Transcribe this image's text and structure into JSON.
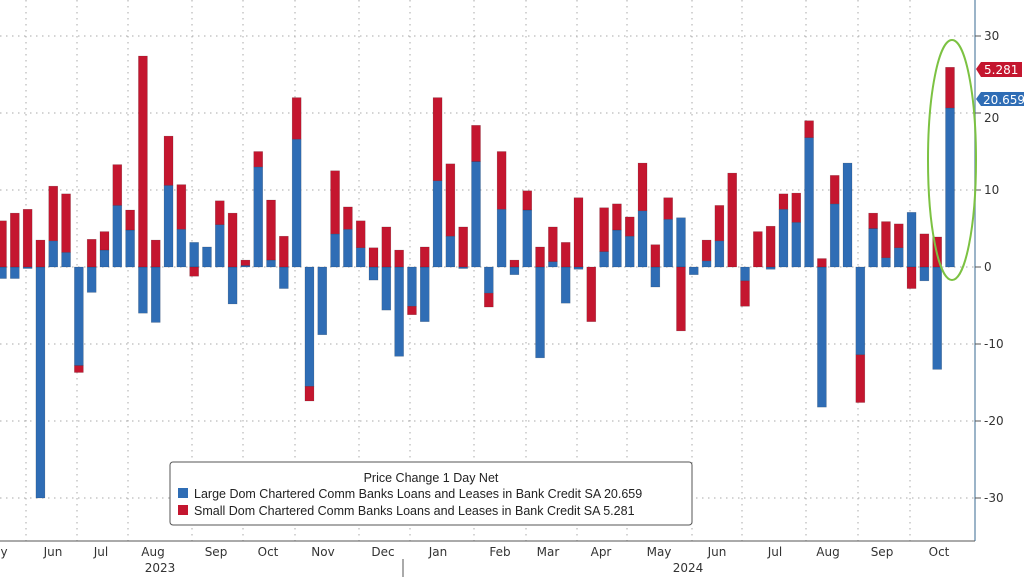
{
  "chart_data": {
    "type": "bar",
    "stacked": true,
    "legend_title": "Price Change 1 Day Net",
    "legend_placement": "bottom-center",
    "ylim": [
      -30,
      30
    ],
    "yticks": [
      30,
      20,
      10,
      0,
      -10,
      -20,
      -30
    ],
    "ytick_labels": [
      "30",
      "20",
      "10",
      "0",
      "-10",
      "-20",
      "-30"
    ],
    "grid": true,
    "months": [
      "y",
      "Jun",
      "Jul",
      "Aug",
      "Sep",
      "Oct",
      "Nov",
      "Dec",
      "Jan",
      "Feb",
      "Mar",
      "Apr",
      "May",
      "Jun",
      "Jul",
      "Aug",
      "Sep",
      "Oct"
    ],
    "years": [
      "2023",
      "2024"
    ],
    "series": [
      {
        "name": "Large Dom Chartered Comm Banks Loans and Leases in Bank Credit SA",
        "last": "20.659",
        "color": "#2f6db5",
        "values": [
          -1.5,
          -1.5,
          -0.2,
          -30,
          3.4,
          1.9,
          -12.8,
          -3.3,
          2.2,
          8,
          4.8,
          -6,
          -7.2,
          10.6,
          4.9,
          3.2,
          2.6,
          5.5,
          -4.8,
          0.2,
          13,
          0.9,
          -2.8,
          16.6,
          -15.5,
          -8.8,
          4.3,
          4.9,
          2.5,
          -1.7,
          -5.6,
          -11.6,
          -5.1,
          -7.1,
          11.2,
          4,
          -0.2,
          13.7,
          -3.4,
          7.5,
          -1,
          7.4,
          -11.8,
          0.7,
          -4.7,
          -0.3,
          0,
          2,
          4.8,
          4,
          7.3,
          -2.6,
          6.2,
          6.4,
          -1,
          0.8,
          3.4,
          0,
          -1.8,
          0,
          -0.3,
          7.5,
          5.8,
          16.8,
          -18.2,
          8.2,
          13.5,
          -11.4,
          5,
          1.2,
          2.5,
          7.1,
          -1.8,
          -13.3,
          20.659
        ]
      },
      {
        "name": "Small Dom Chartered Comm Banks Loans and Leases in Bank Credit SA",
        "last": "5.281",
        "color": "#c4162f",
        "values": [
          6,
          7,
          7.5,
          3.5,
          7.1,
          7.6,
          -0.9,
          3.6,
          2.4,
          5.3,
          2.6,
          27.4,
          3.5,
          6.4,
          5.8,
          -1.2,
          0,
          3.1,
          7,
          0.7,
          2,
          7.8,
          4,
          5.4,
          -1.9,
          0,
          8.2,
          2.9,
          3.5,
          2.5,
          5.2,
          2.2,
          -1.1,
          2.6,
          10.8,
          9.4,
          5.2,
          4.7,
          -1.8,
          7.5,
          0.9,
          2.5,
          2.6,
          4.5,
          3.2,
          9,
          -7.1,
          5.7,
          3.4,
          2.5,
          6.2,
          2.9,
          2.8,
          -8.3,
          0,
          2.7,
          4.6,
          12.2,
          -3.3,
          4.6,
          5.3,
          2,
          3.8,
          2.2,
          1.1,
          3.7,
          0,
          -6.2,
          2,
          4.7,
          3.1,
          -2.8,
          4.3,
          3.9,
          5.281
        ]
      }
    ],
    "annotation": "green ellipse around latest bar"
  }
}
